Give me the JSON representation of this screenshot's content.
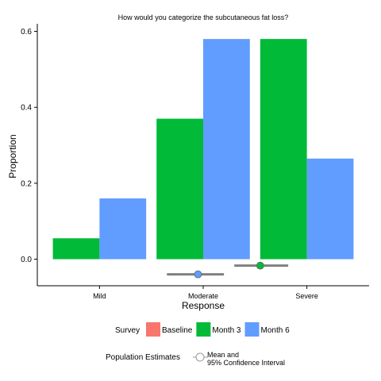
{
  "chart_data": {
    "type": "bar",
    "title": "How would you categorize the subcutaneous fat loss?",
    "xlabel": "Response",
    "ylabel": "Proportion",
    "categories": [
      "Mild",
      "Moderate",
      "Severe"
    ],
    "ylim": [
      -0.07,
      0.62
    ],
    "yticks": [
      0.0,
      0.2,
      0.4,
      0.6
    ],
    "ytick_labels": [
      "0.0",
      "0.2",
      "0.4",
      "0.6"
    ],
    "grid": false,
    "series": [
      {
        "name": "Baseline",
        "color": "#F8766D",
        "values": [
          null,
          null,
          null
        ]
      },
      {
        "name": "Month 3",
        "color": "#00BA38",
        "values": [
          0.055,
          0.37,
          0.58
        ]
      },
      {
        "name": "Month 6",
        "color": "#619CFF",
        "values": [
          0.16,
          0.58,
          0.265
        ]
      }
    ],
    "estimates": [
      {
        "series": "Month 3",
        "color": "#00BA38",
        "mean": 2.55,
        "ci": [
          2.3,
          2.82
        ],
        "y": -0.017
      },
      {
        "series": "Month 6",
        "color": "#619CFF",
        "mean": 1.95,
        "ci": [
          1.65,
          2.2
        ],
        "y": -0.04
      }
    ],
    "legend": {
      "placement": "bottom",
      "survey_title": "Survey",
      "estimates_title": "Population Estimates",
      "estimates_label_line1": "Mean and",
      "estimates_label_line2": "95% Confidence Interval"
    }
  }
}
